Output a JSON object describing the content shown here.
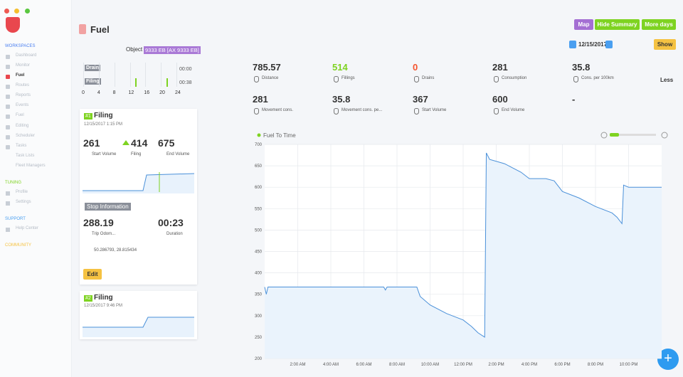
{
  "sidebar": {
    "workspaces": "WORKSPACES",
    "items": [
      "Dashboard",
      "Monitor",
      "Fuel",
      "Routes",
      "Reports",
      "Events",
      "Fuel",
      "Editing",
      "Scheduler",
      "Tasks",
      "Task Lists",
      "Fleet Managers"
    ],
    "tuning": "TUNING",
    "tuning_items": [
      "Profile",
      "Settings"
    ],
    "support": "SUPPORT",
    "support_items": [
      "Help Center"
    ],
    "community": "COMMUNITY"
  },
  "header": {
    "title": "Fuel",
    "object_label": "Object",
    "object_value": "9333 EB [AX 9333 EB]",
    "buttons": [
      "Map",
      "Hide Summary",
      "More days"
    ],
    "date": "12/15/2017",
    "show": "Show"
  },
  "timeline": {
    "rows": [
      {
        "label": "Drain",
        "time": "00:00"
      },
      {
        "label": "Filing",
        "time": "00:38"
      }
    ],
    "ticks": [
      0,
      4,
      8,
      12,
      16,
      20,
      24
    ]
  },
  "summary": {
    "stats": [
      {
        "value": "785.57",
        "label": "Distance"
      },
      {
        "value": "514",
        "label": "Fillings"
      },
      {
        "value": "0",
        "label": "Drains"
      },
      {
        "value": "281",
        "label": "Consumption"
      },
      {
        "value": "35.8",
        "label": "Cons. per 100km"
      },
      {
        "value": "281",
        "label": "Movement cons."
      },
      {
        "value": "35.8",
        "label": "Movement cons. pe..."
      },
      {
        "value": "367",
        "label": "Start Volume"
      },
      {
        "value": "600",
        "label": "End Volume"
      },
      {
        "value": "-"
      }
    ],
    "less": "Less"
  },
  "events": [
    {
      "number": "#1",
      "title": "Filing",
      "date": "12/15/2017 1:15 PM",
      "stats": [
        {
          "value": "261",
          "label": "Start Volume"
        },
        {
          "value": "414",
          "label": "Filing"
        },
        {
          "value": "675",
          "label": "End Volume"
        }
      ],
      "stop_title": "Stop Information",
      "stop_stats": [
        {
          "value": "288.19",
          "label": "Trip Odom..."
        },
        {
          "value": "00:23",
          "label": "Duration"
        }
      ],
      "coords": "50.286793, 28.815434",
      "edit": "Edit"
    },
    {
      "number": "#2",
      "title": "Filing",
      "date": "12/15/2017 9:46 PM"
    }
  ],
  "chart_data": {
    "type": "line",
    "title": "Fuel To Time",
    "x": [
      0,
      0.1,
      0.2,
      7.2,
      7.3,
      7.4,
      9.2,
      9.4,
      10,
      11,
      12,
      12.5,
      12.9,
      13.3,
      13.4,
      13.6,
      14.5,
      15.5,
      16,
      17,
      17.5,
      18,
      19,
      20,
      21,
      21.3,
      21.6,
      21.7,
      22,
      24
    ],
    "series": [
      {
        "name": "Fuel To Time",
        "color": "#4a90d9",
        "values": [
          367,
          350,
          367,
          367,
          360,
          367,
          367,
          345,
          325,
          305,
          290,
          275,
          260,
          250,
          680,
          665,
          655,
          635,
          620,
          620,
          615,
          590,
          575,
          555,
          540,
          530,
          515,
          605,
          600,
          600
        ]
      }
    ],
    "xlim": [
      0,
      24
    ],
    "xticks": [
      {
        "value": 2,
        "label": "2:00 AM"
      },
      {
        "value": 4,
        "label": "4:00 AM"
      },
      {
        "value": 6,
        "label": "6:00 AM"
      },
      {
        "value": 8,
        "label": "8:00 AM"
      },
      {
        "value": 10,
        "label": "10:00 AM"
      },
      {
        "value": 12,
        "label": "12:00 PM"
      },
      {
        "value": 14,
        "label": "2:00 PM"
      },
      {
        "value": 16,
        "label": "4:00 PM"
      },
      {
        "value": 18,
        "label": "6:00 PM"
      },
      {
        "value": 20,
        "label": "8:00 PM"
      },
      {
        "value": 22,
        "label": "10:00 PM"
      }
    ],
    "ylim": [
      200,
      700
    ],
    "yticks": [
      200,
      250,
      300,
      350,
      400,
      450,
      500,
      550,
      600,
      650,
      700
    ],
    "grid": true
  }
}
